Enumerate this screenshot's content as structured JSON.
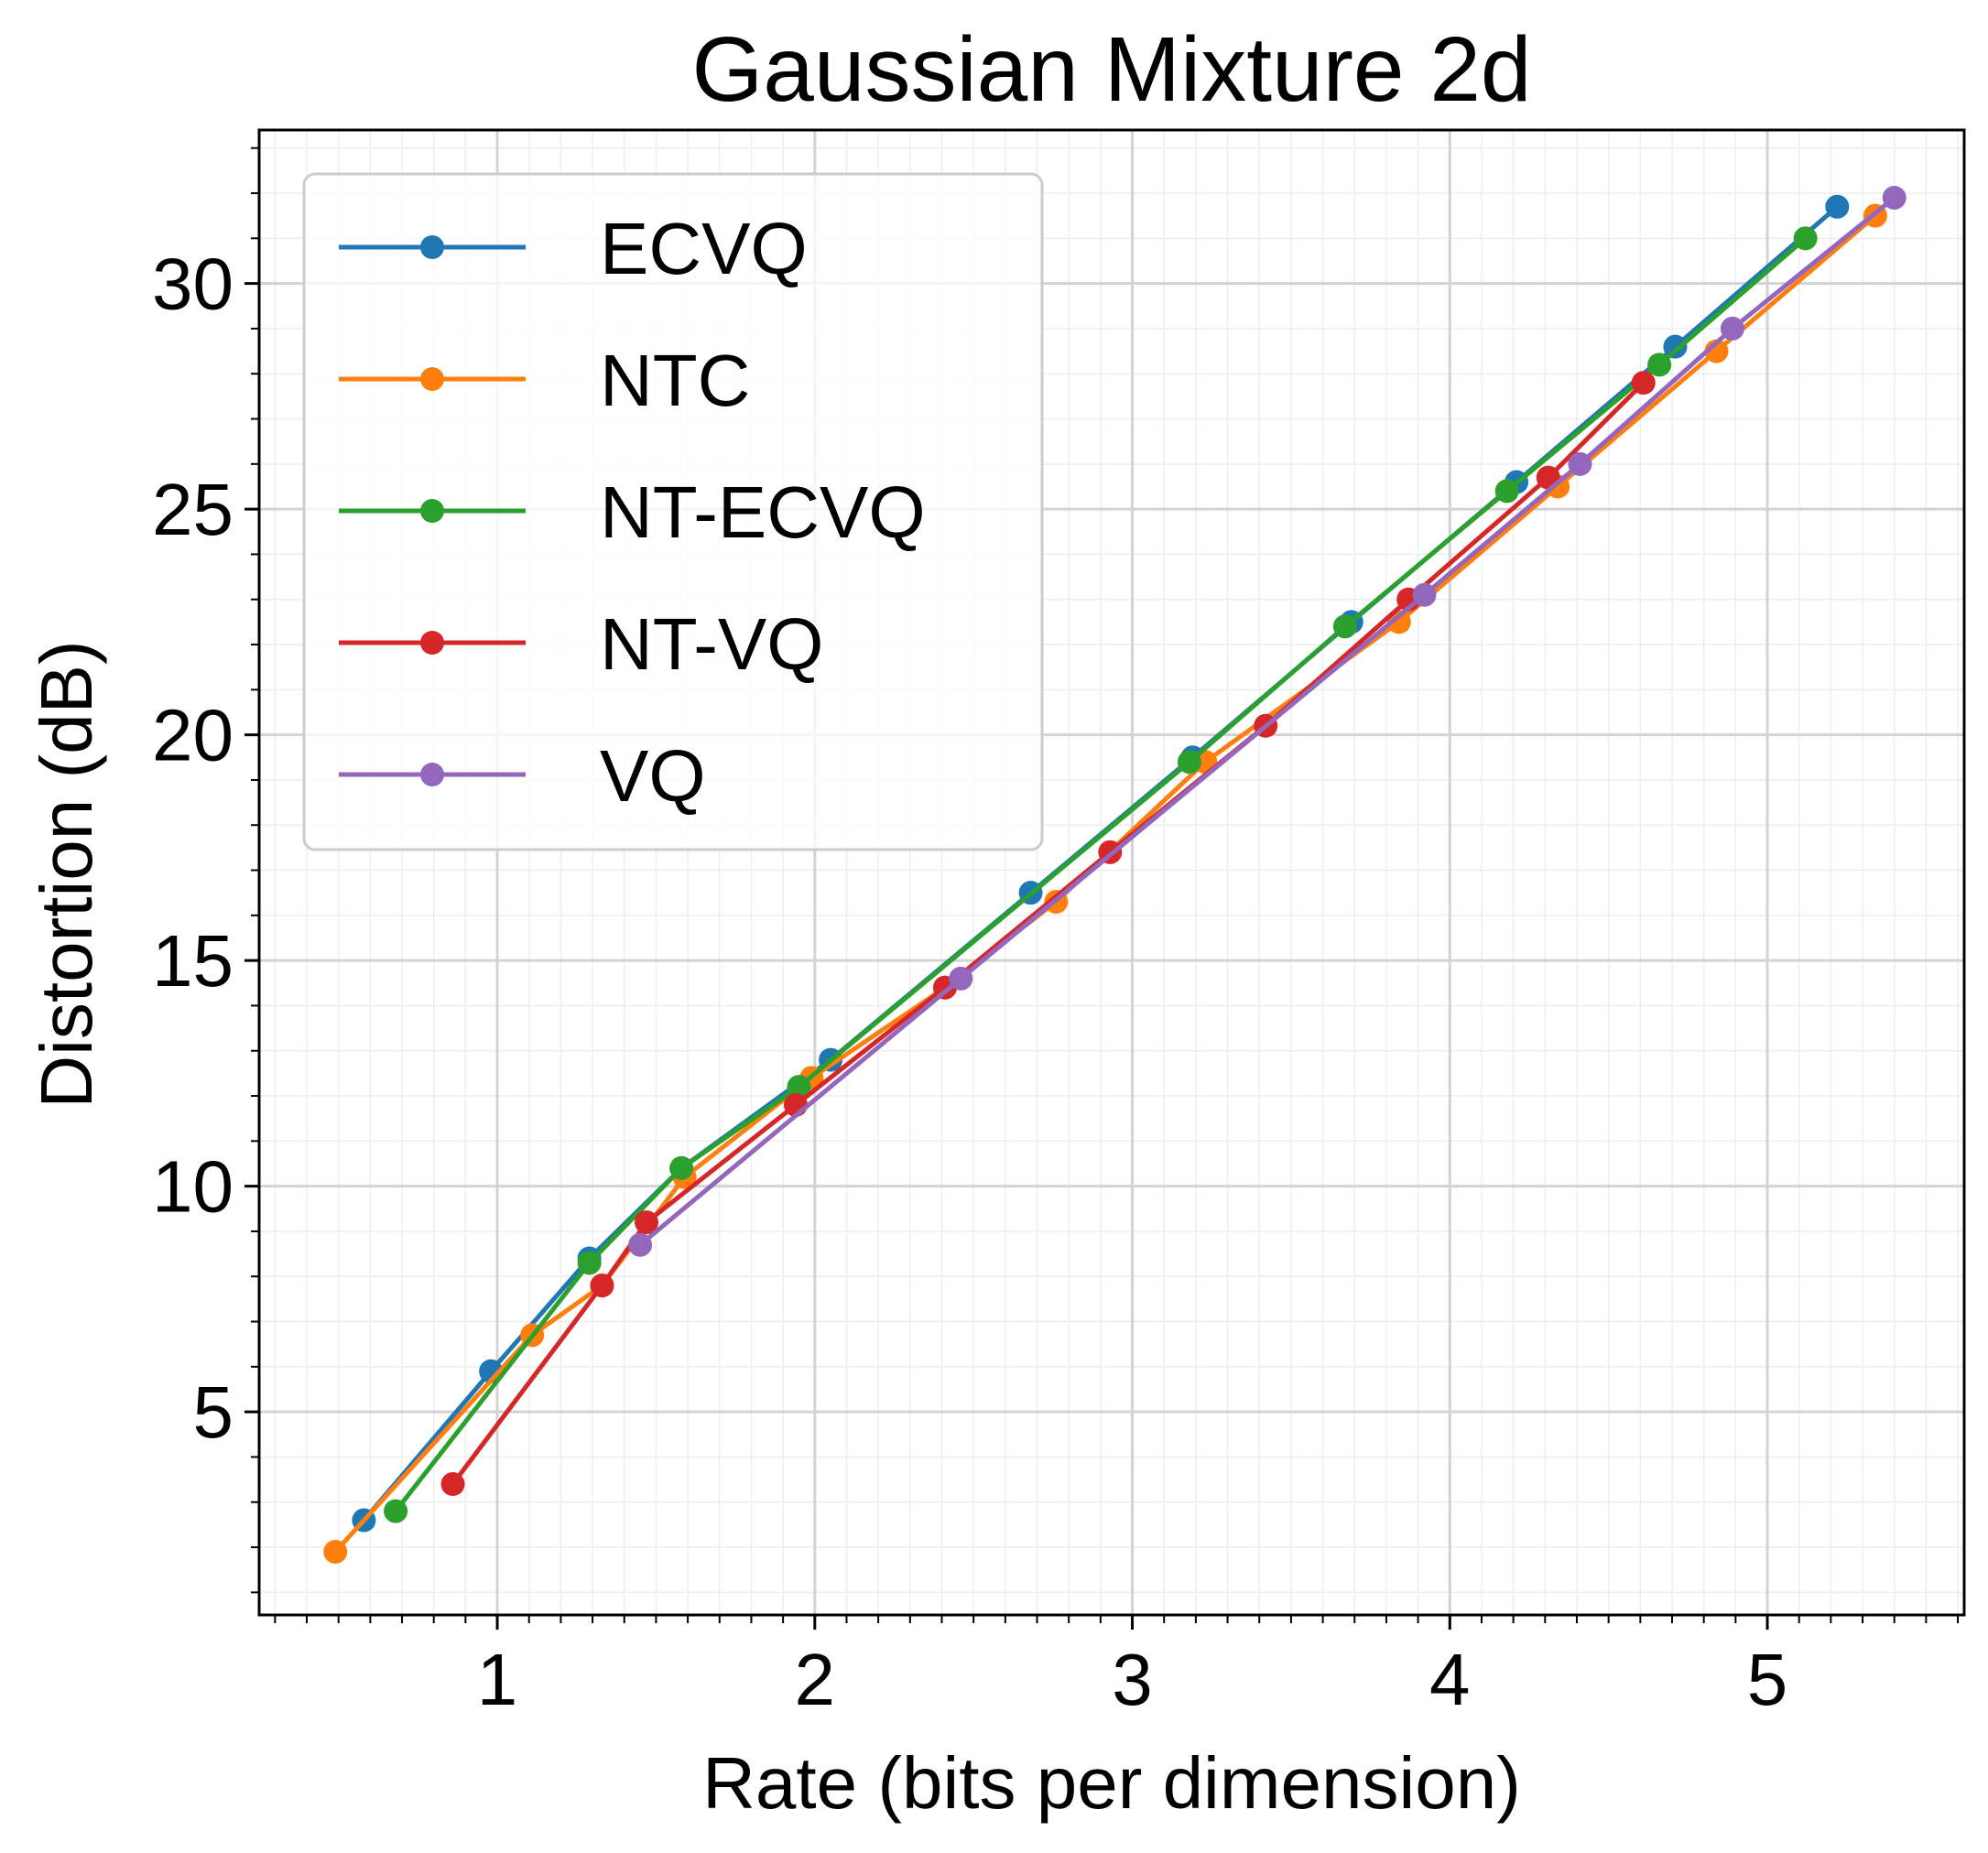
{
  "chart_data": {
    "type": "line",
    "title": "Gaussian Mixture 2d",
    "xlabel": "Rate (bits per dimension)",
    "ylabel": "Distortion (dB)",
    "xlim": [
      0.25,
      5.62
    ],
    "ylim": [
      0.5,
      33.4
    ],
    "x_ticks": [
      1,
      2,
      3,
      4,
      5
    ],
    "x_tick_labels": [
      "1",
      "2",
      "3",
      "4",
      "5"
    ],
    "y_ticks": [
      5,
      10,
      15,
      20,
      25,
      30
    ],
    "y_tick_labels": [
      "5",
      "10",
      "15",
      "20",
      "25",
      "30"
    ],
    "grid": true,
    "minor_grid": true,
    "legend_position": "upper-left",
    "series": [
      {
        "name": "ECVQ",
        "color": "#1f77b4",
        "x": [
          0.58,
          0.98,
          1.29,
          1.58,
          2.05,
          2.68,
          3.19,
          3.69,
          4.21,
          4.71,
          5.22
        ],
        "y": [
          2.6,
          5.9,
          8.4,
          10.4,
          12.8,
          16.5,
          19.5,
          22.5,
          25.6,
          28.6,
          31.7
        ]
      },
      {
        "name": "NTC",
        "color": "#ff7f0e",
        "x": [
          0.49,
          1.11,
          1.33,
          1.59,
          1.99,
          2.41,
          2.76,
          3.23,
          3.84,
          4.34,
          4.84,
          5.34
        ],
        "y": [
          1.9,
          6.7,
          7.8,
          10.2,
          12.4,
          14.4,
          16.3,
          19.4,
          22.5,
          25.5,
          28.5,
          31.5
        ]
      },
      {
        "name": "NT-ECVQ",
        "color": "#2ca02c",
        "x": [
          0.68,
          1.29,
          1.58,
          1.95,
          3.18,
          3.67,
          4.18,
          4.66,
          5.12
        ],
        "y": [
          2.8,
          8.3,
          10.4,
          12.2,
          19.4,
          22.4,
          25.4,
          28.2,
          31.0
        ]
      },
      {
        "name": "NT-VQ",
        "color": "#d62728",
        "x": [
          0.86,
          1.33,
          1.47,
          1.94,
          2.41,
          2.93,
          3.42,
          3.87,
          4.31,
          4.61
        ],
        "y": [
          3.4,
          7.8,
          9.2,
          11.8,
          14.4,
          17.4,
          20.2,
          23.0,
          25.7,
          27.8
        ]
      },
      {
        "name": "VQ",
        "color": "#9467bd",
        "x": [
          1.45,
          2.46,
          3.92,
          4.41,
          4.89,
          5.4
        ],
        "y": [
          8.7,
          14.6,
          23.1,
          26.0,
          29.0,
          31.9
        ]
      }
    ]
  }
}
